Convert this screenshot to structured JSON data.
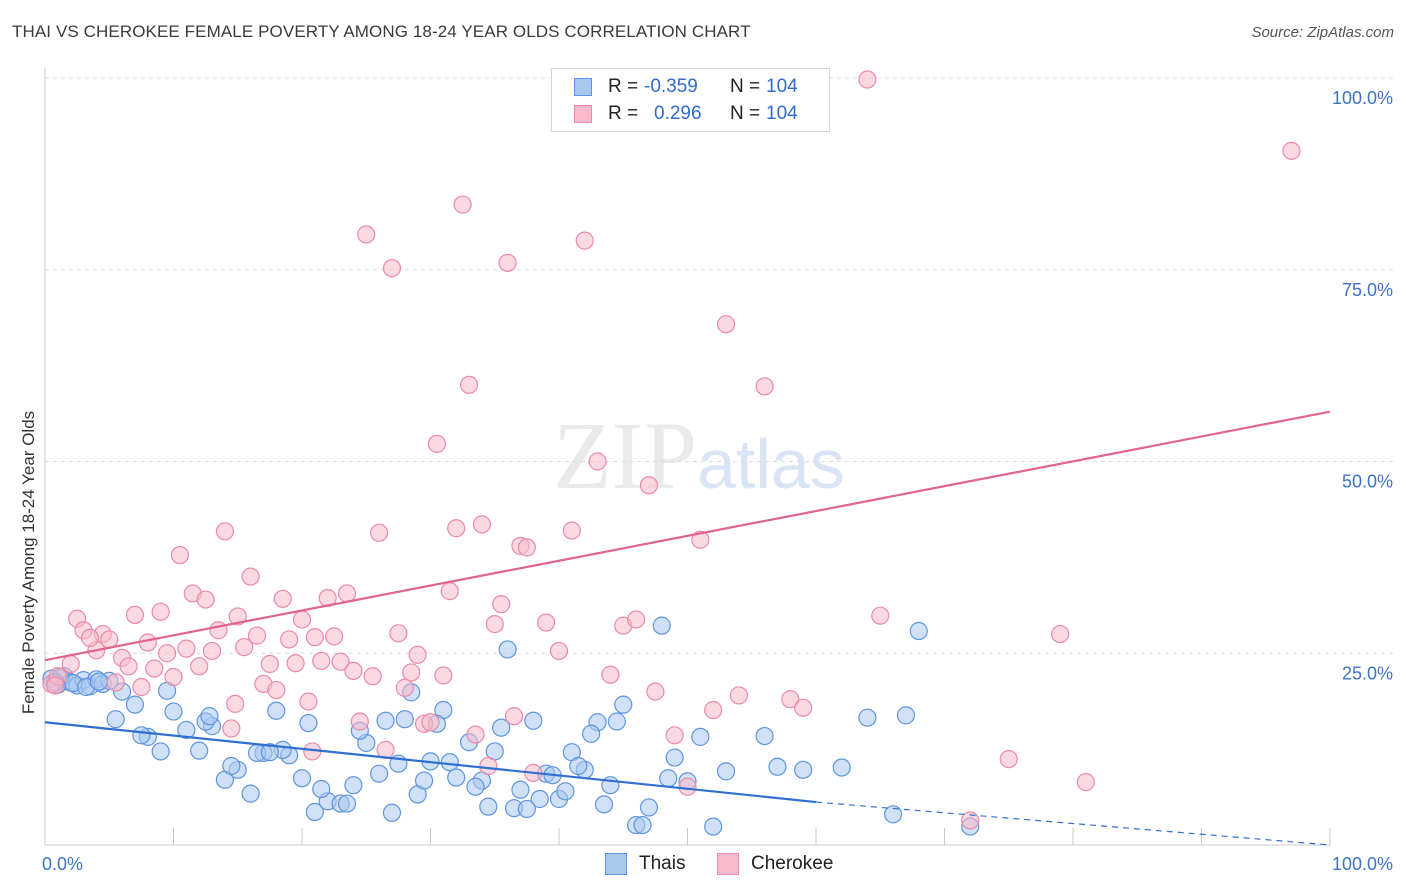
{
  "title": "THAI VS CHEROKEE FEMALE POVERTY AMONG 18-24 YEAR OLDS CORRELATION CHART",
  "source": "Source: ZipAtlas.com",
  "watermark": {
    "zip": "ZIP",
    "atlas": "atlas"
  },
  "legend": {
    "rows": [
      {
        "r_label": "R =",
        "r_value": "-0.359",
        "n_label": "N =",
        "n_value": "104",
        "color": "#a9c8f0"
      },
      {
        "r_label": "R =",
        "r_value": "0.296",
        "n_label": "N =",
        "n_value": "104",
        "color": "#f7b9cb"
      }
    ]
  },
  "bottom_legend": [
    {
      "label": "Thais",
      "color": "#a9c8f0"
    },
    {
      "label": "Cherokee",
      "color": "#f7b9cb"
    }
  ],
  "chart_data": {
    "type": "scatter",
    "title": "THAI VS CHEROKEE FEMALE POVERTY AMONG 18-24 YEAR OLDS CORRELATION CHART",
    "xlabel": "",
    "ylabel": "Female Poverty Among 18-24 Year Olds",
    "xlim": [
      0,
      100
    ],
    "ylim": [
      0,
      100
    ],
    "x_tick_labels": [
      "0.0%",
      "100.0%"
    ],
    "y_ticks": [
      25,
      50,
      75,
      100
    ],
    "y_tick_labels": [
      "25.0%",
      "50.0%",
      "75.0%",
      "100.0%"
    ],
    "grid": true,
    "colors": {
      "thais_fill": "#a9c8f0",
      "thais_stroke": "#5f95de",
      "thais_line": "#2f6fd1",
      "cherokee_fill": "#f7b9cb",
      "cherokee_stroke": "#eb8aa8",
      "cherokee_line": "#e0648f"
    },
    "series": [
      {
        "name": "Thais",
        "points": [
          [
            0.5,
            21.7
          ],
          [
            1.0,
            20.9
          ],
          [
            1.5,
            22.0
          ],
          [
            2.0,
            21.2
          ],
          [
            2.5,
            20.8
          ],
          [
            3.0,
            21.5
          ],
          [
            3.5,
            20.7
          ],
          [
            4.0,
            21.6
          ],
          [
            4.5,
            21.0
          ],
          [
            5.0,
            21.4
          ],
          [
            1.2,
            21.9
          ],
          [
            2.2,
            21.1
          ],
          [
            3.2,
            20.6
          ],
          [
            4.2,
            21.3
          ],
          [
            0.8,
            21.2
          ],
          [
            6.0,
            20.0
          ],
          [
            7.0,
            18.3
          ],
          [
            8.0,
            14.1
          ],
          [
            9.0,
            12.2
          ],
          [
            10.0,
            17.4
          ],
          [
            11.0,
            15.0
          ],
          [
            12.0,
            12.3
          ],
          [
            13.0,
            15.5
          ],
          [
            14.0,
            8.5
          ],
          [
            15.0,
            9.8
          ],
          [
            5.5,
            16.4
          ],
          [
            7.5,
            14.3
          ],
          [
            9.5,
            20.1
          ],
          [
            12.5,
            16.1
          ],
          [
            16.0,
            6.7
          ],
          [
            17.0,
            12.0
          ],
          [
            18.0,
            17.5
          ],
          [
            19.0,
            11.7
          ],
          [
            20.0,
            8.7
          ],
          [
            21.0,
            4.3
          ],
          [
            22.0,
            5.7
          ],
          [
            23.0,
            5.4
          ],
          [
            24.0,
            7.8
          ],
          [
            25.0,
            13.3
          ],
          [
            26.0,
            9.3
          ],
          [
            27.0,
            4.2
          ],
          [
            28.0,
            16.4
          ],
          [
            29.0,
            6.6
          ],
          [
            30.0,
            10.9
          ],
          [
            31.0,
            17.6
          ],
          [
            32.0,
            8.8
          ],
          [
            33.0,
            13.4
          ],
          [
            34.0,
            8.4
          ],
          [
            35.0,
            12.2
          ],
          [
            36.0,
            25.5
          ],
          [
            37.0,
            7.2
          ],
          [
            38.0,
            16.2
          ],
          [
            39.0,
            9.3
          ],
          [
            40.0,
            6.0
          ],
          [
            41.0,
            12.1
          ],
          [
            42.0,
            9.8
          ],
          [
            43.0,
            16.0
          ],
          [
            44.0,
            7.8
          ],
          [
            45.0,
            18.3
          ],
          [
            46.0,
            2.6
          ],
          [
            47.0,
            4.9
          ],
          [
            48.0,
            28.6
          ],
          [
            49.0,
            11.4
          ],
          [
            50.0,
            8.3
          ],
          [
            51.0,
            14.1
          ],
          [
            16.5,
            12.0
          ],
          [
            18.5,
            12.4
          ],
          [
            20.5,
            15.9
          ],
          [
            23.5,
            5.4
          ],
          [
            26.5,
            16.2
          ],
          [
            28.5,
            19.9
          ],
          [
            30.5,
            15.8
          ],
          [
            33.5,
            7.6
          ],
          [
            35.5,
            15.3
          ],
          [
            38.5,
            6.0
          ],
          [
            40.5,
            7.0
          ],
          [
            41.5,
            10.3
          ],
          [
            43.5,
            5.3
          ],
          [
            46.5,
            2.6
          ],
          [
            12.8,
            16.8
          ],
          [
            14.5,
            10.3
          ],
          [
            17.5,
            12.1
          ],
          [
            21.5,
            7.3
          ],
          [
            24.5,
            14.9
          ],
          [
            27.5,
            10.6
          ],
          [
            29.5,
            8.4
          ],
          [
            31.5,
            10.8
          ],
          [
            36.5,
            4.8
          ],
          [
            39.5,
            9.1
          ],
          [
            42.5,
            14.5
          ],
          [
            52.0,
            2.4
          ],
          [
            53.0,
            9.6
          ],
          [
            56.0,
            14.2
          ],
          [
            57.0,
            10.2
          ],
          [
            59.0,
            9.8
          ],
          [
            62.0,
            10.1
          ],
          [
            64.0,
            16.6
          ],
          [
            66.0,
            4.0
          ],
          [
            67.0,
            16.9
          ],
          [
            68.0,
            27.9
          ],
          [
            72.0,
            2.4
          ],
          [
            37.5,
            4.7
          ],
          [
            44.5,
            16.1
          ],
          [
            48.5,
            8.7
          ],
          [
            34.5,
            5.0
          ]
        ],
        "trend": {
          "x": [
            0,
            60
          ],
          "y": [
            16.0,
            5.6
          ],
          "dashed_extension": {
            "x": [
              60,
              100
            ],
            "y": [
              5.6,
              -0.9
            ]
          }
        }
      },
      {
        "name": "Cherokee",
        "points": [
          [
            0.5,
            21.0
          ],
          [
            1.0,
            22.0
          ],
          [
            2.0,
            23.6
          ],
          [
            2.5,
            29.5
          ],
          [
            3.0,
            28.0
          ],
          [
            4.0,
            25.4
          ],
          [
            4.5,
            27.5
          ],
          [
            5.0,
            26.8
          ],
          [
            6.0,
            24.4
          ],
          [
            6.5,
            23.3
          ],
          [
            7.0,
            30.0
          ],
          [
            7.5,
            20.6
          ],
          [
            8.0,
            26.4
          ],
          [
            8.5,
            23.0
          ],
          [
            9.0,
            30.4
          ],
          [
            9.5,
            25.0
          ],
          [
            10.0,
            21.9
          ],
          [
            10.5,
            37.8
          ],
          [
            11.0,
            25.6
          ],
          [
            11.5,
            32.8
          ],
          [
            12.0,
            23.3
          ],
          [
            12.5,
            32.0
          ],
          [
            13.0,
            25.3
          ],
          [
            13.5,
            28.0
          ],
          [
            14.0,
            40.9
          ],
          [
            14.5,
            15.2
          ],
          [
            15.0,
            29.8
          ],
          [
            15.5,
            25.8
          ],
          [
            16.0,
            35.0
          ],
          [
            16.5,
            27.3
          ],
          [
            17.0,
            21.0
          ],
          [
            17.5,
            23.6
          ],
          [
            18.0,
            20.2
          ],
          [
            18.5,
            32.1
          ],
          [
            19.0,
            26.8
          ],
          [
            19.5,
            23.7
          ],
          [
            20.0,
            29.4
          ],
          [
            20.5,
            18.7
          ],
          [
            21.0,
            27.1
          ],
          [
            21.5,
            24.0
          ],
          [
            22.0,
            32.2
          ],
          [
            22.5,
            27.2
          ],
          [
            23.0,
            23.9
          ],
          [
            23.5,
            32.8
          ],
          [
            24.0,
            22.7
          ],
          [
            24.5,
            16.1
          ],
          [
            25.0,
            79.6
          ],
          [
            25.5,
            22.0
          ],
          [
            26.0,
            40.7
          ],
          [
            26.5,
            12.4
          ],
          [
            27.0,
            75.2
          ],
          [
            27.5,
            27.6
          ],
          [
            28.0,
            20.5
          ],
          [
            28.5,
            22.5
          ],
          [
            29.0,
            24.8
          ],
          [
            29.5,
            15.8
          ],
          [
            30.0,
            16.0
          ],
          [
            30.5,
            52.3
          ],
          [
            31.0,
            22.1
          ],
          [
            31.5,
            33.1
          ],
          [
            32.0,
            41.3
          ],
          [
            32.5,
            83.5
          ],
          [
            33.0,
            60.0
          ],
          [
            33.5,
            14.4
          ],
          [
            34.0,
            41.8
          ],
          [
            34.5,
            10.3
          ],
          [
            35.0,
            28.8
          ],
          [
            35.5,
            31.4
          ],
          [
            36.0,
            75.9
          ],
          [
            36.5,
            16.8
          ],
          [
            37.0,
            39.0
          ],
          [
            37.5,
            38.8
          ],
          [
            38.0,
            9.4
          ],
          [
            39.0,
            29.0
          ],
          [
            40.0,
            25.3
          ],
          [
            41.0,
            41.0
          ],
          [
            42.0,
            78.8
          ],
          [
            43.0,
            50.0
          ],
          [
            44.0,
            22.2
          ],
          [
            45.0,
            28.6
          ],
          [
            46.0,
            29.4
          ],
          [
            47.0,
            46.9
          ],
          [
            47.5,
            20.0
          ],
          [
            49.0,
            14.3
          ],
          [
            50.0,
            7.6
          ],
          [
            51.0,
            39.8
          ],
          [
            52.0,
            17.6
          ],
          [
            53.0,
            67.9
          ],
          [
            54.0,
            19.5
          ],
          [
            56.0,
            59.8
          ],
          [
            58.0,
            19.0
          ],
          [
            59.0,
            17.9
          ],
          [
            64.0,
            99.8
          ],
          [
            65.0,
            29.9
          ],
          [
            72.0,
            3.2
          ],
          [
            75.0,
            11.2
          ],
          [
            79.0,
            27.5
          ],
          [
            81.0,
            8.2
          ],
          [
            97.0,
            90.5
          ],
          [
            0.8,
            20.8
          ],
          [
            3.5,
            27.0
          ],
          [
            5.5,
            21.2
          ],
          [
            14.8,
            18.4
          ],
          [
            20.8,
            12.2
          ]
        ],
        "trend": {
          "x": [
            0,
            100
          ],
          "y": [
            24.1,
            56.5
          ]
        }
      }
    ]
  }
}
